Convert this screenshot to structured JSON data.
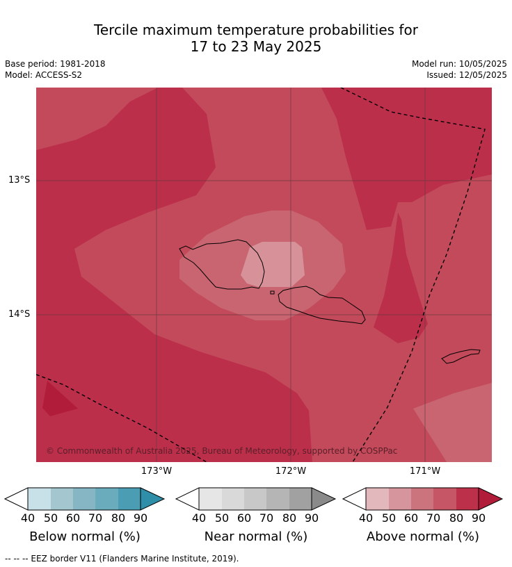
{
  "title": {
    "line1": "Tercile maximum temperature probabilities for",
    "line2": "17 to 23 May 2025"
  },
  "info": {
    "base_period": "Base period: 1981-2018",
    "model": "Model: ACCESS-S2",
    "model_run": "Model run: 10/05/2025",
    "issued": "Issued: 12/05/2025"
  },
  "map": {
    "lat_labels": [
      "13°S",
      "14°S"
    ],
    "lon_labels": [
      "173°W",
      "172°W",
      "171°W"
    ],
    "copyright": "© Commonwealth of Australia 2025, Bureau of Meteorology, supported by COSPPac",
    "colors": {
      "above_70": "#c24a5a",
      "above_80": "#bb2f4a",
      "above_90": "#b01c3a",
      "above_60": "#c96571",
      "above_50": "#d79199",
      "grid": "#6b3a42"
    }
  },
  "colorbars": [
    {
      "label": "Below normal (%)",
      "ticks": [
        "40",
        "50",
        "60",
        "70",
        "80",
        "90"
      ],
      "colors": [
        "#c8e0e8",
        "#a4c6ce",
        "#86b6c3",
        "#6aacbc",
        "#4a9db2",
        "#2f8fa8"
      ]
    },
    {
      "label": "Near normal (%)",
      "ticks": [
        "40",
        "50",
        "60",
        "70",
        "80",
        "90"
      ],
      "colors": [
        "#e6e6e6",
        "#d9d9d9",
        "#c8c8c8",
        "#b5b5b5",
        "#a1a1a1",
        "#8a8a8a"
      ]
    },
    {
      "label": "Above normal (%)",
      "ticks": [
        "40",
        "50",
        "60",
        "70",
        "80",
        "90"
      ],
      "colors": [
        "#e3b8bd",
        "#d6959d",
        "#cc747e",
        "#c65565",
        "#bc3049",
        "#b01c3a"
      ]
    }
  ],
  "legend": {
    "eez": "--  --  -- EEZ border V11 (Flanders Marine Institute, 2019)."
  }
}
